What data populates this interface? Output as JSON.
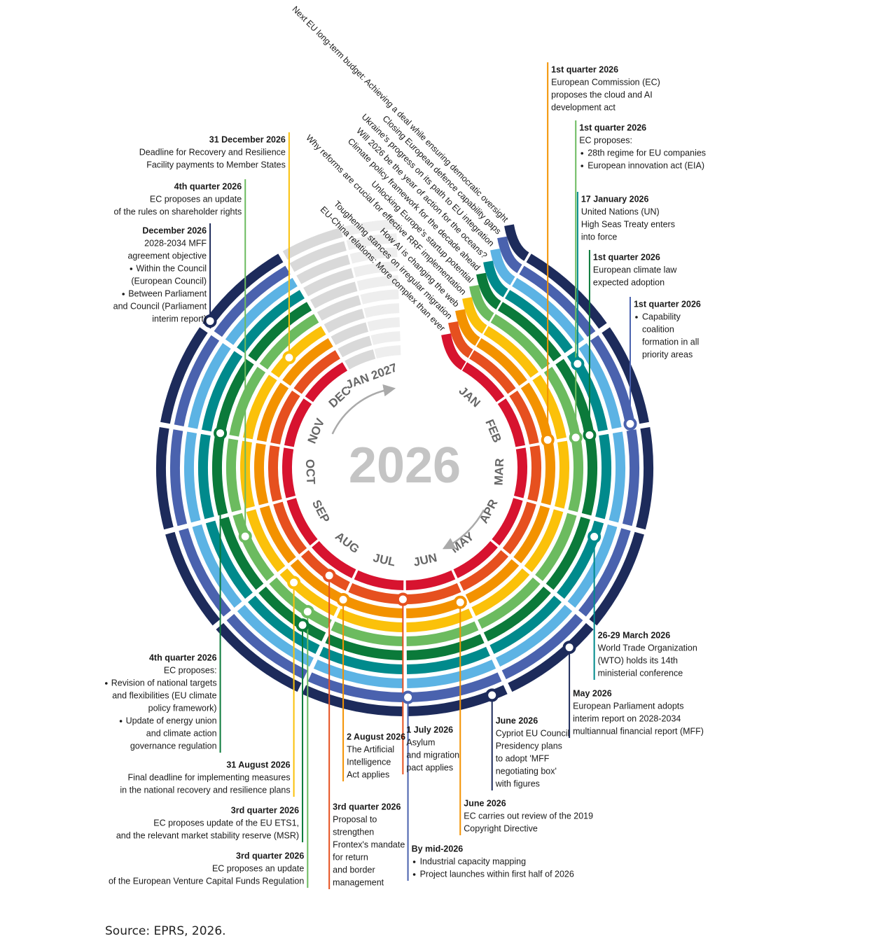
{
  "center_label": "2026",
  "months": [
    "JAN",
    "FEB",
    "MAR",
    "APR",
    "MAY",
    "JUN",
    "JUL",
    "AUG",
    "SEP",
    "OCT",
    "NOV",
    "DEC"
  ],
  "next_year_label": "JAN 2027",
  "themes": [
    {
      "name": "Next EU long-term budget: Achieving a deal while ensuring democratic oversight",
      "color": "#1d2b5b"
    },
    {
      "name": "Closing European defence capability gaps",
      "color": "#4a62ae"
    },
    {
      "name": "Ukraine's progress on its path to EU integration",
      "color": "#5cb3e4"
    },
    {
      "name": "Will 2026 be the year of action for the oceans?",
      "color": "#008a8c"
    },
    {
      "name": "Climate policy framework for the decade ahead",
      "color": "#0b7a3a"
    },
    {
      "name": "Unlocking Europe's startup potential",
      "color": "#6cbb5f"
    },
    {
      "name": "Why reforms are crucial for effective RRF implementation",
      "color": "#fbc10a"
    },
    {
      "name": "How AI is changing the web",
      "color": "#f39200"
    },
    {
      "name": "Toughening stances on irregular migration",
      "color": "#e6501f"
    },
    {
      "name": "EU-China relations: More complex than ever",
      "color": "#d7132f"
    }
  ],
  "events": [
    {
      "date": "1st quarter 2026",
      "lines": [
        "European Commission (EC)",
        "proposes the cloud and AI",
        "development act"
      ]
    },
    {
      "date": "1st quarter 2026",
      "lines": [
        "EC proposes:",
        {
          "text": "28th regime for EU companies",
          "bullet": true
        },
        {
          "text": "European innovation act (EIA)",
          "bullet": true
        }
      ]
    },
    {
      "date": "17 January 2026",
      "lines": [
        "United Nations (UN)",
        "High Seas Treaty enters",
        "into force"
      ]
    },
    {
      "date": "1st quarter 2026",
      "lines": [
        "European climate law",
        "expected  adoption"
      ]
    },
    {
      "date": "1st quarter 2026",
      "lines": [
        {
          "text": "Capability",
          "bullet": true
        },
        "coalition",
        "formation in all",
        "priority areas"
      ]
    },
    {
      "date": "26-29 March 2026",
      "lines": [
        "World Trade Organization",
        "(WTO) holds its 14th",
        "ministerial conference"
      ]
    },
    {
      "date": "May 2026",
      "lines": [
        "European Parliament adopts",
        "interim report on 2028-2034",
        "multiannual financial report (MFF)"
      ]
    },
    {
      "date": "June 2026",
      "lines": [
        "Cypriot EU Council",
        "Presidency plans",
        "to adopt 'MFF",
        "negotiating box'",
        "with figures"
      ]
    },
    {
      "date": "June 2026",
      "lines": [
        "EC carries out review of the 2019",
        "Copyright Directive"
      ]
    },
    {
      "date": "1 July 2026",
      "lines": [
        "Asylum",
        "and migration",
        "pact applies"
      ]
    },
    {
      "date": "By mid-2026",
      "lines": [
        {
          "text": "Industrial capacity mapping",
          "bullet": true
        },
        {
          "text": "Project launches within first half of 2026",
          "bullet": true
        }
      ]
    },
    {
      "date": "2 August 2026",
      "lines": [
        "The Artificial",
        "Intelligence",
        "Act applies"
      ]
    },
    {
      "date": "3rd quarter 2026",
      "lines": [
        "Proposal to",
        "strengthen",
        "Frontex's mandate",
        "for return",
        "and border",
        "management"
      ]
    },
    {
      "date": "31 August 2026",
      "lines": [
        "Final deadline for implementing measures",
        "in the national recovery and resilience plans"
      ]
    },
    {
      "date": "3rd quarter 2026",
      "lines": [
        "EC proposes update of the EU ETS1,",
        "and the relevant market stability reserve (MSR)"
      ]
    },
    {
      "date": "3rd quarter 2026",
      "lines": [
        "EC proposes an update",
        "of the European Venture Capital Funds Regulation"
      ]
    },
    {
      "date": "4th quarter 2026",
      "lines": [
        "EC proposes:",
        {
          "text": "Revision of national targets",
          "bullet": true
        },
        "and flexibilities (EU climate",
        "policy framework)",
        {
          "text": "Update of energy union",
          "bullet": true
        },
        "and climate action",
        "governance regulation"
      ]
    },
    {
      "date": "31 December 2026",
      "lines": [
        "Deadline for Recovery and Resilience",
        "Facility payments to Member States"
      ]
    },
    {
      "date": "4th quarter 2026",
      "lines": [
        "EC proposes an update",
        "of the rules on shareholder rights"
      ]
    },
    {
      "date": "December 2026",
      "lines": [
        "2028-2034 MFF",
        "agreement objective",
        {
          "text": "Within the Council",
          "bullet": true
        },
        "(European Council)",
        {
          "text": "Between Parliament",
          "bullet": true
        },
        "and Council (Parliament",
        "interim report)"
      ]
    }
  ],
  "source": "Source: EPRS, 2026."
}
